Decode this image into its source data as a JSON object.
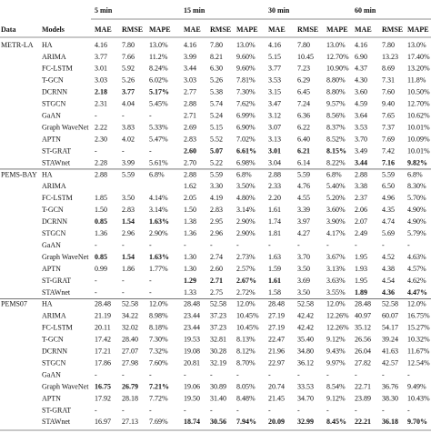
{
  "table": {
    "horizons": [
      "5 min",
      "15 min",
      "30 min",
      "60 min"
    ],
    "headers": [
      "Data",
      "Models",
      "MAE",
      "RMSE",
      "MAPE"
    ],
    "groups": [
      {
        "name": "METR-LA",
        "rows": [
          {
            "model": "HA",
            "values": [
              "4.16",
              "7.80",
              "13.0%",
              "4.16",
              "7.80",
              "13.0%",
              "4.16",
              "7.80",
              "13.0%",
              "4.16",
              "7.80",
              "13.0%"
            ],
            "bold": []
          },
          {
            "model": "ARIMA",
            "values": [
              "3.77",
              "7.66",
              "11.2%",
              "3.99",
              "8.21",
              "9.60%",
              "5.15",
              "10.45",
              "12.70%",
              "6.90",
              "13.23",
              "17.40%"
            ],
            "bold": []
          },
          {
            "model": "FC-LSTM",
            "values": [
              "3.01",
              "5.92",
              "8.24%",
              "3.44",
              "6.30",
              "9.60%",
              "3.77",
              "7.23",
              "10.90%",
              "4.37",
              "8.69",
              "13.20%"
            ],
            "bold": []
          },
          {
            "model": "T-GCN",
            "values": [
              "3.03",
              "5.26",
              "6.02%",
              "3.03",
              "5.26",
              "7.81%",
              "3.53",
              "6.29",
              "8.80%",
              "4.30",
              "7.31",
              "11.8%"
            ],
            "bold": []
          },
          {
            "model": "DCRNN",
            "values": [
              "2.18",
              "3.77",
              "5.17%",
              "2.77",
              "5.38",
              "7.30%",
              "3.15",
              "6.45",
              "8.80%",
              "3.60",
              "7.60",
              "10.50%"
            ],
            "bold": [
              0,
              1,
              2
            ]
          },
          {
            "model": "STGCN",
            "values": [
              "2.31",
              "4.04",
              "5.45%",
              "2.88",
              "5.74",
              "7.62%",
              "3.47",
              "7.24",
              "9.57%",
              "4.59",
              "9.40",
              "12.70%"
            ],
            "bold": []
          },
          {
            "model": "GaAN",
            "values": [
              "-",
              "-",
              "-",
              "2.71",
              "5.24",
              "6.99%",
              "3.12",
              "6.36",
              "8.56%",
              "3.64",
              "7.65",
              "10.62%"
            ],
            "bold": []
          },
          {
            "model": "Graph WaveNet",
            "values": [
              "2.22",
              "3.83",
              "5.33%",
              "2.69",
              "5.15",
              "6.90%",
              "3.07",
              "6.22",
              "8.37%",
              "3.53",
              "7.37",
              "10.01%"
            ],
            "bold": []
          },
          {
            "model": "APTN",
            "values": [
              "2.30",
              "4.02",
              "5.47%",
              "2.83",
              "5.52",
              "7.02%",
              "3.13",
              "6.40",
              "8.52%",
              "3.70",
              "7.69",
              "10.09%"
            ],
            "bold": []
          },
          {
            "model": "ST-GRAT",
            "values": [
              "-",
              "-",
              "-",
              "2.60",
              "5.07",
              "6.61%",
              "3.01",
              "6.21",
              "8.15%",
              "3.49",
              "7.42",
              "10.01%"
            ],
            "bold": [
              3,
              4,
              5,
              6,
              7,
              8
            ]
          },
          {
            "model": "STAWnet",
            "values": [
              "2.28",
              "3.99",
              "5.61%",
              "2.70",
              "5.22",
              "6.98%",
              "3.04",
              "6.14",
              "8.22%",
              "3.44",
              "7.16",
              "9.82%"
            ],
            "bold": [
              9,
              10,
              11
            ]
          }
        ]
      },
      {
        "name": "PEMS-BAY",
        "rows": [
          {
            "model": "HA",
            "values": [
              "2.88",
              "5.59",
              "6.8%",
              "2.88",
              "5.59",
              "6.8%",
              "2.88",
              "5.59",
              "6.8%",
              "2.88",
              "5.59",
              "6.8%"
            ],
            "bold": []
          },
          {
            "model": "ARIMA",
            "values": [
              null,
              null,
              null,
              "1.62",
              "3.30",
              "3.50%",
              "2.33",
              "4.76",
              "5.40%",
              "3.38",
              "6.50",
              "8.30%"
            ],
            "bold": []
          },
          {
            "model": "FC-LSTM",
            "values": [
              "1.85",
              "3.50",
              "4.14%",
              "2.05",
              "4.19",
              "4.80%",
              "2.20",
              "4.55",
              "5.20%",
              "2.37",
              "4.96",
              "5.70%"
            ],
            "bold": []
          },
          {
            "model": "T-GCN",
            "values": [
              "1.50",
              "2.83",
              "3.14%",
              "1.50",
              "2.83",
              "3.14%",
              "1.61",
              "3.39",
              "3.60%",
              "2.06",
              "4.35",
              "4.90%"
            ],
            "bold": []
          },
          {
            "model": "DCRNN",
            "values": [
              "0.85",
              "1.54",
              "1.63%",
              "1.38",
              "2.95",
              "2.90%",
              "1.74",
              "3.97",
              "3.90%",
              "2.07",
              "4.74",
              "4.90%"
            ],
            "bold": [
              0,
              1,
              2
            ]
          },
          {
            "model": "STGCN",
            "values": [
              "1.36",
              "2.96",
              "2.90%",
              "1.36",
              "2.96",
              "2.90%",
              "1.81",
              "4.27",
              "4.17%",
              "2.49",
              "5.69",
              "5.79%"
            ],
            "bold": []
          },
          {
            "model": "GaAN",
            "values": [
              "-",
              "-",
              "-",
              "-",
              "-",
              "-",
              "-",
              "-",
              "-",
              "-",
              "-",
              "-"
            ],
            "bold": []
          },
          {
            "model": "Graph WaveNet",
            "values": [
              "0.85",
              "1.54",
              "1.63%",
              "1.30",
              "2.74",
              "2.73%",
              "1.63",
              "3.70",
              "3.67%",
              "1.95",
              "4.52",
              "4.63%"
            ],
            "bold": [
              0,
              1,
              2
            ]
          },
          {
            "model": "APTN",
            "values": [
              "0.99",
              "1.86",
              "1.77%",
              "1.30",
              "2.60",
              "2.57%",
              "1.59",
              "3.50",
              "3.13%",
              "1.93",
              "4.38",
              "4.57%"
            ],
            "bold": []
          },
          {
            "model": "ST-GRAT",
            "values": [
              "-",
              "-",
              "-",
              "1.29",
              "2.71",
              "2.67%",
              "1.61",
              "3.69",
              "3.63%",
              "1.95",
              "4.54",
              "4.62%"
            ],
            "bold": [
              3,
              4,
              5,
              6
            ]
          },
          {
            "model": "STAWnet",
            "values": [
              "-",
              "-",
              "-",
              "1.33",
              "2.75",
              "2.72%",
              "1.58",
              "3.50",
              "3.55%",
              "1.89",
              "4.36",
              "4.47%"
            ],
            "bold": [
              9,
              10,
              11
            ]
          }
        ]
      },
      {
        "name": "PEMS07",
        "rows": [
          {
            "model": "HA",
            "values": [
              "28.48",
              "52.58",
              "12.0%",
              "28.48",
              "52.58",
              "12.0%",
              "28.48",
              "52.58",
              "12.0%",
              "28.48",
              "52.58",
              "12.0%"
            ],
            "bold": []
          },
          {
            "model": "ARIMA",
            "values": [
              "21.19",
              "34.22",
              "8.98%",
              "23.44",
              "37.23",
              "10.45%",
              "27.19",
              "42.42",
              "12.26%",
              "40.97",
              "60.07",
              "16.75%"
            ],
            "bold": []
          },
          {
            "model": "FC-LSTM",
            "values": [
              "20.11",
              "32.02",
              "8.18%",
              "23.44",
              "37.23",
              "10.45%",
              "27.19",
              "42.42",
              "12.26%",
              "35.12",
              "54.17",
              "15.27%"
            ],
            "bold": []
          },
          {
            "model": "T-GCN",
            "values": [
              "17.42",
              "28.40",
              "7.30%",
              "19.53",
              "32.81",
              "8.13%",
              "22.47",
              "35.40",
              "9.12%",
              "26.56",
              "39.24",
              "10.32%"
            ],
            "bold": []
          },
          {
            "model": "DCRNN",
            "values": [
              "17.21",
              "27.07",
              "7.32%",
              "19.08",
              "30.28",
              "8.12%",
              "21.96",
              "34.80",
              "9.43%",
              "26.04",
              "41.63",
              "11.67%"
            ],
            "bold": []
          },
          {
            "model": "STGCN",
            "values": [
              "17.86",
              "27.98",
              "7.60%",
              "20.81",
              "32.19",
              "8.70%",
              "22.97",
              "36.12",
              "9.97%",
              "27.82",
              "42.57",
              "12.54%"
            ],
            "bold": []
          },
          {
            "model": "GaAN",
            "values": [
              "-",
              "-",
              "-",
              "-",
              "-",
              "-",
              "-",
              "-",
              "-",
              "-",
              "-",
              "-"
            ],
            "bold": []
          },
          {
            "model": "Graph WaveNet",
            "values": [
              "16.75",
              "26.79",
              "7.21%",
              "19.06",
              "30.89",
              "8.05%",
              "20.74",
              "33.53",
              "8.54%",
              "22.71",
              "36.76",
              "9.49%"
            ],
            "bold": [
              0,
              1,
              2
            ]
          },
          {
            "model": "APTN",
            "values": [
              "17.92",
              "28.18",
              "7.72%",
              "19.50",
              "31.40",
              "8.48%",
              "21.45",
              "34.70",
              "9.12%",
              "23.89",
              "38.30",
              "10.43%"
            ],
            "bold": []
          },
          {
            "model": "ST-GRAT",
            "values": [
              "-",
              "-",
              "-",
              "-",
              "-",
              "-",
              "-",
              "-",
              "-",
              "-",
              "-",
              "-"
            ],
            "bold": []
          },
          {
            "model": "STAWnet",
            "values": [
              "16.97",
              "27.13",
              "7.69%",
              "18.74",
              "30.56",
              "7.94%",
              "20.09",
              "32.99",
              "8.45%",
              "22.21",
              "36.18",
              "9.70%"
            ],
            "bold": [
              3,
              4,
              5,
              6,
              7,
              8,
              9,
              10,
              11
            ]
          }
        ]
      }
    ]
  }
}
